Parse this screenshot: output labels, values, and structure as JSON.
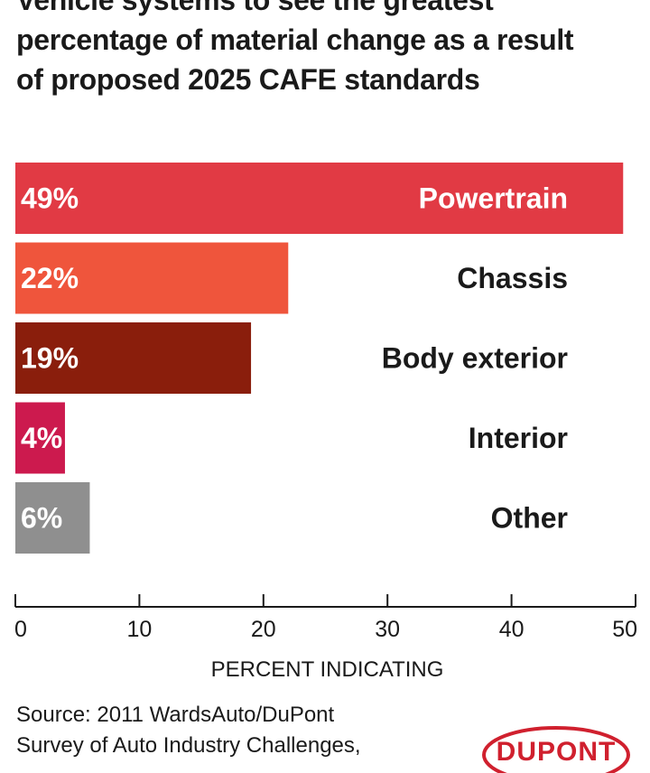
{
  "title_lines": [
    "Vehicle systems to see the greatest",
    "percentage of material change as a result",
    "of proposed 2025 CAFE standards"
  ],
  "chart_data": {
    "type": "bar",
    "orientation": "horizontal",
    "title": "Vehicle systems to see the greatest percentage of material change as a result of proposed 2025 CAFE standards",
    "categories": [
      "Powertrain",
      "Chassis",
      "Body exterior",
      "Interior",
      "Other"
    ],
    "values": [
      49,
      22,
      19,
      4,
      6
    ],
    "value_labels": [
      "49%",
      "22%",
      "19%",
      "4%",
      "6%"
    ],
    "colors": [
      "#e13a44",
      "#ef553c",
      "#8a1e0c",
      "#cc1a4e",
      "#8f8f8f"
    ],
    "xlabel": "PERCENT INDICATING",
    "xlim": [
      0,
      50
    ],
    "xticks": [
      0,
      10,
      20,
      30,
      40,
      50
    ],
    "xtick_labels": [
      "0",
      "10",
      "20",
      "30",
      "40",
      "50"
    ],
    "grid": false,
    "legend": "none"
  },
  "source_lines": [
    "Source: 2011 WardsAuto/DuPont",
    "Survey of Auto Industry Challenges,"
  ],
  "logo_text": "DUPONT"
}
